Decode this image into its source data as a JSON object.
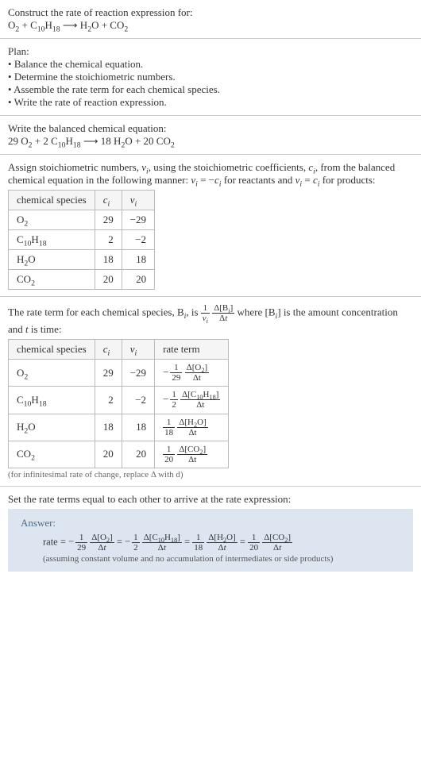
{
  "header": {
    "title": "Construct the rate of reaction expression for:",
    "equation_html": "O<sub>2</sub> + C<sub>10</sub>H<sub>18</sub> ⟶ H<sub>2</sub>O + CO<sub>2</sub>"
  },
  "plan": {
    "title": "Plan:",
    "items": [
      "Balance the chemical equation.",
      "Determine the stoichiometric numbers.",
      "Assemble the rate term for each chemical species.",
      "Write the rate of reaction expression."
    ]
  },
  "balanced": {
    "title": "Write the balanced chemical equation:",
    "equation_html": "29 O<sub>2</sub> + 2 C<sub>10</sub>H<sub>18</sub> ⟶ 18 H<sub>2</sub>O + 20 CO<sub>2</sub>"
  },
  "stoich": {
    "intro_html": "Assign stoichiometric numbers, <i>ν<sub>i</sub></i>, using the stoichiometric coefficients, <i>c<sub>i</sub></i>, from the balanced chemical equation in the following manner: <i>ν<sub>i</sub></i> = −<i>c<sub>i</sub></i> for reactants and <i>ν<sub>i</sub></i> = <i>c<sub>i</sub></i> for products:",
    "table": {
      "headers": [
        "chemical species",
        "c_i",
        "ν_i"
      ],
      "rows": [
        {
          "species_html": "O<sub>2</sub>",
          "c": "29",
          "v": "−29"
        },
        {
          "species_html": "C<sub>10</sub>H<sub>18</sub>",
          "c": "2",
          "v": "−2"
        },
        {
          "species_html": "H<sub>2</sub>O",
          "c": "18",
          "v": "18"
        },
        {
          "species_html": "CO<sub>2</sub>",
          "c": "20",
          "v": "20"
        }
      ]
    }
  },
  "rate_terms": {
    "intro_pre": "The rate term for each chemical species, B",
    "intro_post": " is the amount concentration and <i>t</i> is time:",
    "table": {
      "headers": [
        "chemical species",
        "c_i",
        "ν_i",
        "rate term"
      ],
      "rows": [
        {
          "species_html": "O<sub>2</sub>",
          "c": "29",
          "v": "−29",
          "sign": "−",
          "coef_num": "1",
          "coef_den": "29",
          "delta_num_html": "Δ[O<sub>2</sub>]",
          "delta_den": "Δt"
        },
        {
          "species_html": "C<sub>10</sub>H<sub>18</sub>",
          "c": "2",
          "v": "−2",
          "sign": "−",
          "coef_num": "1",
          "coef_den": "2",
          "delta_num_html": "Δ[C<sub>10</sub>H<sub>18</sub>]",
          "delta_den": "Δt"
        },
        {
          "species_html": "H<sub>2</sub>O",
          "c": "18",
          "v": "18",
          "sign": "",
          "coef_num": "1",
          "coef_den": "18",
          "delta_num_html": "Δ[H<sub>2</sub>O]",
          "delta_den": "Δt"
        },
        {
          "species_html": "CO<sub>2</sub>",
          "c": "20",
          "v": "20",
          "sign": "",
          "coef_num": "1",
          "coef_den": "20",
          "delta_num_html": "Δ[CO<sub>2</sub>]",
          "delta_den": "Δt"
        }
      ]
    },
    "footnote": "(for infinitesimal rate of change, replace Δ with d)"
  },
  "final": {
    "title": "Set the rate terms equal to each other to arrive at the rate expression:",
    "answer_label": "Answer:",
    "rate_prefix": "rate =",
    "footnote": "(assuming constant volume and no accumulation of intermediates or side products)"
  },
  "colors": {
    "border": "#cccccc",
    "answer_bg": "#dde6f0",
    "text": "#333333"
  }
}
